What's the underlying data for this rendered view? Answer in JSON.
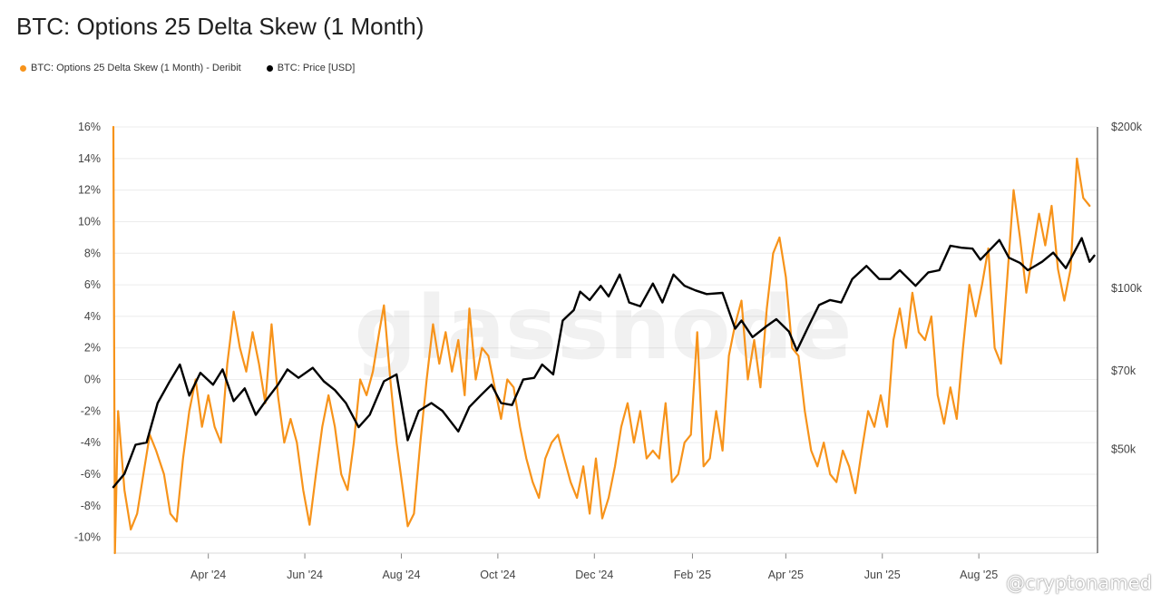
{
  "title": "BTC: Options 25 Delta Skew (1 Month)",
  "legend": [
    {
      "label": "BTC: Options 25 Delta Skew (1 Month) - Deribit",
      "color": "#f7931a"
    },
    {
      "label": "BTC: Price [USD]",
      "color": "#000000"
    }
  ],
  "watermark": "glassnode",
  "credit": "@cryptonamed",
  "chart_data": {
    "type": "line",
    "x_axis": {
      "range": [
        "2024-02-01",
        "2025-10-15"
      ],
      "ticks": [
        {
          "date": "2024-04-01",
          "label": "Apr '24"
        },
        {
          "date": "2024-06-01",
          "label": "Jun '24"
        },
        {
          "date": "2024-08-01",
          "label": "Aug '24"
        },
        {
          "date": "2024-10-01",
          "label": "Oct '24"
        },
        {
          "date": "2024-12-01",
          "label": "Dec '24"
        },
        {
          "date": "2025-02-01",
          "label": "Feb '25"
        },
        {
          "date": "2025-04-01",
          "label": "Apr '25"
        },
        {
          "date": "2025-06-01",
          "label": "Jun '25"
        },
        {
          "date": "2025-08-01",
          "label": "Aug '25"
        }
      ]
    },
    "y_left": {
      "range": [
        -11,
        16
      ],
      "ticks": [
        {
          "value": 16,
          "label": "16%"
        },
        {
          "value": 14,
          "label": "14%"
        },
        {
          "value": 12,
          "label": "12%"
        },
        {
          "value": 10,
          "label": "10%"
        },
        {
          "value": 8,
          "label": "8%"
        },
        {
          "value": 6,
          "label": "6%"
        },
        {
          "value": 4,
          "label": "4%"
        },
        {
          "value": 2,
          "label": "2%"
        },
        {
          "value": 0,
          "label": "0%"
        },
        {
          "value": -2,
          "label": "-2%"
        },
        {
          "value": -4,
          "label": "-4%"
        },
        {
          "value": -6,
          "label": "-6%"
        },
        {
          "value": -8,
          "label": "-8%"
        },
        {
          "value": -10,
          "label": "-10%"
        }
      ]
    },
    "y_right": {
      "scale": "log",
      "range": [
        32000,
        200000
      ],
      "ticks": [
        {
          "value": 200000,
          "label": "$200k"
        },
        {
          "value": 100000,
          "label": "$100k"
        },
        {
          "value": 70000,
          "label": "$70k"
        },
        {
          "value": 50000,
          "label": "$50k"
        }
      ]
    },
    "grid": "horizontal",
    "legend_position": "top-left",
    "series": [
      {
        "name": "BTC: Options 25 Delta Skew (1 Month) - Deribit",
        "axis": "left",
        "color": "#f7931a",
        "points": [
          [
            "2024-02-01",
            16
          ],
          [
            "2024-02-02",
            -11
          ],
          [
            "2024-02-04",
            -2
          ],
          [
            "2024-02-08",
            -7
          ],
          [
            "2024-02-12",
            -9.5
          ],
          [
            "2024-02-16",
            -8.5
          ],
          [
            "2024-02-20",
            -6
          ],
          [
            "2024-02-24",
            -3.5
          ],
          [
            "2024-02-28",
            -4.5
          ],
          [
            "2024-03-04",
            -6
          ],
          [
            "2024-03-08",
            -8.5
          ],
          [
            "2024-03-12",
            -9
          ],
          [
            "2024-03-16",
            -5
          ],
          [
            "2024-03-20",
            -2
          ],
          [
            "2024-03-24",
            0
          ],
          [
            "2024-03-28",
            -3
          ],
          [
            "2024-04-01",
            -1
          ],
          [
            "2024-04-05",
            -3
          ],
          [
            "2024-04-09",
            -4
          ],
          [
            "2024-04-13",
            1
          ],
          [
            "2024-04-17",
            4.3
          ],
          [
            "2024-04-21",
            2
          ],
          [
            "2024-04-25",
            0.5
          ],
          [
            "2024-04-29",
            3
          ],
          [
            "2024-05-03",
            1
          ],
          [
            "2024-05-07",
            -1.5
          ],
          [
            "2024-05-11",
            3.5
          ],
          [
            "2024-05-15",
            -1
          ],
          [
            "2024-05-19",
            -4
          ],
          [
            "2024-05-23",
            -2.5
          ],
          [
            "2024-05-27",
            -4
          ],
          [
            "2024-05-31",
            -7
          ],
          [
            "2024-06-04",
            -9.2
          ],
          [
            "2024-06-08",
            -6
          ],
          [
            "2024-06-12",
            -3
          ],
          [
            "2024-06-16",
            -1
          ],
          [
            "2024-06-20",
            -3
          ],
          [
            "2024-06-24",
            -6
          ],
          [
            "2024-06-28",
            -7
          ],
          [
            "2024-07-02",
            -4
          ],
          [
            "2024-07-06",
            0
          ],
          [
            "2024-07-10",
            -1
          ],
          [
            "2024-07-14",
            0.5
          ],
          [
            "2024-07-18",
            3
          ],
          [
            "2024-07-21",
            4.7
          ],
          [
            "2024-07-25",
            0
          ],
          [
            "2024-07-29",
            -4
          ],
          [
            "2024-08-02",
            -7
          ],
          [
            "2024-08-05",
            -9.3
          ],
          [
            "2024-08-09",
            -8.5
          ],
          [
            "2024-08-13",
            -4
          ],
          [
            "2024-08-17",
            0
          ],
          [
            "2024-08-21",
            3.5
          ],
          [
            "2024-08-25",
            1
          ],
          [
            "2024-08-29",
            3
          ],
          [
            "2024-09-02",
            0.5
          ],
          [
            "2024-09-06",
            2.5
          ],
          [
            "2024-09-10",
            -1
          ],
          [
            "2024-09-13",
            4.5
          ],
          [
            "2024-09-17",
            0
          ],
          [
            "2024-09-21",
            2
          ],
          [
            "2024-09-25",
            1.5
          ],
          [
            "2024-09-29",
            -0.5
          ],
          [
            "2024-10-03",
            -2.5
          ],
          [
            "2024-10-07",
            0
          ],
          [
            "2024-10-11",
            -0.5
          ],
          [
            "2024-10-15",
            -3
          ],
          [
            "2024-10-19",
            -5
          ],
          [
            "2024-10-23",
            -6.5
          ],
          [
            "2024-10-27",
            -7.5
          ],
          [
            "2024-10-31",
            -5
          ],
          [
            "2024-11-04",
            -4
          ],
          [
            "2024-11-08",
            -3.5
          ],
          [
            "2024-11-12",
            -5
          ],
          [
            "2024-11-16",
            -6.5
          ],
          [
            "2024-11-20",
            -7.5
          ],
          [
            "2024-11-24",
            -5.5
          ],
          [
            "2024-11-28",
            -8.5
          ],
          [
            "2024-12-02",
            -5
          ],
          [
            "2024-12-06",
            -8.8
          ],
          [
            "2024-12-10",
            -7.5
          ],
          [
            "2024-12-14",
            -5.5
          ],
          [
            "2024-12-18",
            -3
          ],
          [
            "2024-12-22",
            -1.5
          ],
          [
            "2024-12-26",
            -4
          ],
          [
            "2024-12-30",
            -2
          ],
          [
            "2025-01-03",
            -5
          ],
          [
            "2025-01-07",
            -4.5
          ],
          [
            "2025-01-11",
            -5
          ],
          [
            "2025-01-15",
            -1.5
          ],
          [
            "2025-01-19",
            -6.5
          ],
          [
            "2025-01-23",
            -6
          ],
          [
            "2025-01-27",
            -4
          ],
          [
            "2025-01-31",
            -3.5
          ],
          [
            "2025-02-04",
            3
          ],
          [
            "2025-02-08",
            -5.5
          ],
          [
            "2025-02-12",
            -5
          ],
          [
            "2025-02-16",
            -2
          ],
          [
            "2025-02-20",
            -4.5
          ],
          [
            "2025-02-24",
            1.5
          ],
          [
            "2025-02-28",
            3.5
          ],
          [
            "2025-03-04",
            5
          ],
          [
            "2025-03-08",
            0
          ],
          [
            "2025-03-12",
            2.5
          ],
          [
            "2025-03-16",
            -0.5
          ],
          [
            "2025-03-20",
            4.5
          ],
          [
            "2025-03-24",
            8
          ],
          [
            "2025-03-28",
            9
          ],
          [
            "2025-04-01",
            6.5
          ],
          [
            "2025-04-05",
            2
          ],
          [
            "2025-04-09",
            1.5
          ],
          [
            "2025-04-13",
            -2
          ],
          [
            "2025-04-17",
            -4.5
          ],
          [
            "2025-04-21",
            -5.5
          ],
          [
            "2025-04-25",
            -4
          ],
          [
            "2025-04-29",
            -6
          ],
          [
            "2025-05-03",
            -6.5
          ],
          [
            "2025-05-07",
            -4.5
          ],
          [
            "2025-05-11",
            -5.5
          ],
          [
            "2025-05-15",
            -7.2
          ],
          [
            "2025-05-19",
            -4.5
          ],
          [
            "2025-05-23",
            -2
          ],
          [
            "2025-05-27",
            -3
          ],
          [
            "2025-05-31",
            -1
          ],
          [
            "2025-06-04",
            -3
          ],
          [
            "2025-06-08",
            2.5
          ],
          [
            "2025-06-12",
            4.5
          ],
          [
            "2025-06-16",
            2
          ],
          [
            "2025-06-20",
            5.5
          ],
          [
            "2025-06-24",
            3
          ],
          [
            "2025-06-28",
            2.5
          ],
          [
            "2025-07-02",
            4
          ],
          [
            "2025-07-06",
            -1
          ],
          [
            "2025-07-10",
            -2.8
          ],
          [
            "2025-07-14",
            -0.5
          ],
          [
            "2025-07-18",
            -2.5
          ],
          [
            "2025-07-22",
            2
          ],
          [
            "2025-07-26",
            6
          ],
          [
            "2025-07-30",
            4
          ],
          [
            "2025-08-03",
            6
          ],
          [
            "2025-08-07",
            8.3
          ],
          [
            "2025-08-11",
            2
          ],
          [
            "2025-08-15",
            1
          ],
          [
            "2025-08-19",
            6.5
          ],
          [
            "2025-08-23",
            12
          ],
          [
            "2025-08-27",
            9
          ],
          [
            "2025-08-31",
            5.5
          ],
          [
            "2025-09-04",
            8
          ],
          [
            "2025-09-08",
            10.5
          ],
          [
            "2025-09-12",
            8.5
          ],
          [
            "2025-09-16",
            11
          ],
          [
            "2025-09-20",
            7
          ],
          [
            "2025-09-24",
            5
          ],
          [
            "2025-09-28",
            7
          ],
          [
            "2025-10-02",
            14
          ],
          [
            "2025-10-06",
            11.5
          ],
          [
            "2025-10-10",
            11
          ]
        ]
      },
      {
        "name": "BTC: Price [USD]",
        "axis": "right",
        "color": "#000000",
        "points": [
          [
            "2024-02-01",
            42500
          ],
          [
            "2024-02-08",
            45000
          ],
          [
            "2024-02-15",
            51000
          ],
          [
            "2024-02-22",
            51500
          ],
          [
            "2024-02-29",
            61000
          ],
          [
            "2024-03-07",
            66500
          ],
          [
            "2024-03-14",
            72000
          ],
          [
            "2024-03-20",
            63000
          ],
          [
            "2024-03-27",
            69500
          ],
          [
            "2024-04-04",
            66000
          ],
          [
            "2024-04-10",
            70500
          ],
          [
            "2024-04-17",
            61500
          ],
          [
            "2024-04-24",
            65000
          ],
          [
            "2024-05-01",
            58000
          ],
          [
            "2024-05-08",
            62000
          ],
          [
            "2024-05-15",
            66000
          ],
          [
            "2024-05-21",
            70500
          ],
          [
            "2024-05-28",
            68000
          ],
          [
            "2024-06-06",
            71000
          ],
          [
            "2024-06-13",
            67000
          ],
          [
            "2024-06-20",
            64500
          ],
          [
            "2024-06-27",
            61000
          ],
          [
            "2024-07-05",
            55000
          ],
          [
            "2024-07-12",
            58000
          ],
          [
            "2024-07-21",
            67000
          ],
          [
            "2024-07-29",
            69000
          ],
          [
            "2024-08-05",
            52000
          ],
          [
            "2024-08-12",
            59000
          ],
          [
            "2024-08-20",
            61000
          ],
          [
            "2024-08-27",
            59000
          ],
          [
            "2024-09-06",
            54000
          ],
          [
            "2024-09-13",
            60000
          ],
          [
            "2024-09-20",
            63000
          ],
          [
            "2024-09-27",
            66000
          ],
          [
            "2024-10-03",
            61000
          ],
          [
            "2024-10-10",
            60500
          ],
          [
            "2024-10-17",
            67500
          ],
          [
            "2024-10-24",
            68000
          ],
          [
            "2024-10-29",
            72000
          ],
          [
            "2024-11-05",
            69000
          ],
          [
            "2024-11-11",
            87000
          ],
          [
            "2024-11-18",
            91000
          ],
          [
            "2024-11-22",
            98500
          ],
          [
            "2024-11-28",
            95000
          ],
          [
            "2024-12-05",
            101000
          ],
          [
            "2024-12-10",
            96500
          ],
          [
            "2024-12-17",
            106000
          ],
          [
            "2024-12-23",
            94000
          ],
          [
            "2024-12-30",
            92500
          ],
          [
            "2025-01-07",
            102000
          ],
          [
            "2025-01-13",
            94000
          ],
          [
            "2025-01-20",
            106000
          ],
          [
            "2025-01-27",
            101000
          ],
          [
            "2025-02-03",
            99000
          ],
          [
            "2025-02-10",
            97500
          ],
          [
            "2025-02-20",
            98000
          ],
          [
            "2025-02-28",
            84000
          ],
          [
            "2025-03-04",
            87000
          ],
          [
            "2025-03-11",
            81000
          ],
          [
            "2025-03-20",
            85000
          ],
          [
            "2025-03-26",
            87500
          ],
          [
            "2025-04-03",
            83000
          ],
          [
            "2025-04-08",
            76500
          ],
          [
            "2025-04-15",
            84500
          ],
          [
            "2025-04-22",
            93000
          ],
          [
            "2025-04-29",
            95000
          ],
          [
            "2025-05-06",
            94000
          ],
          [
            "2025-05-13",
            104000
          ],
          [
            "2025-05-22",
            110000
          ],
          [
            "2025-05-30",
            104000
          ],
          [
            "2025-06-06",
            104000
          ],
          [
            "2025-06-12",
            108000
          ],
          [
            "2025-06-22",
            101000
          ],
          [
            "2025-06-30",
            107000
          ],
          [
            "2025-07-07",
            108000
          ],
          [
            "2025-07-14",
            120000
          ],
          [
            "2025-07-21",
            119000
          ],
          [
            "2025-07-28",
            118500
          ],
          [
            "2025-08-02",
            113000
          ],
          [
            "2025-08-14",
            123000
          ],
          [
            "2025-08-20",
            114000
          ],
          [
            "2025-08-27",
            111500
          ],
          [
            "2025-09-01",
            108000
          ],
          [
            "2025-09-10",
            112000
          ],
          [
            "2025-09-17",
            116500
          ],
          [
            "2025-09-25",
            109000
          ],
          [
            "2025-10-05",
            124000
          ],
          [
            "2025-10-10",
            112000
          ],
          [
            "2025-10-13",
            115000
          ]
        ]
      }
    ]
  }
}
